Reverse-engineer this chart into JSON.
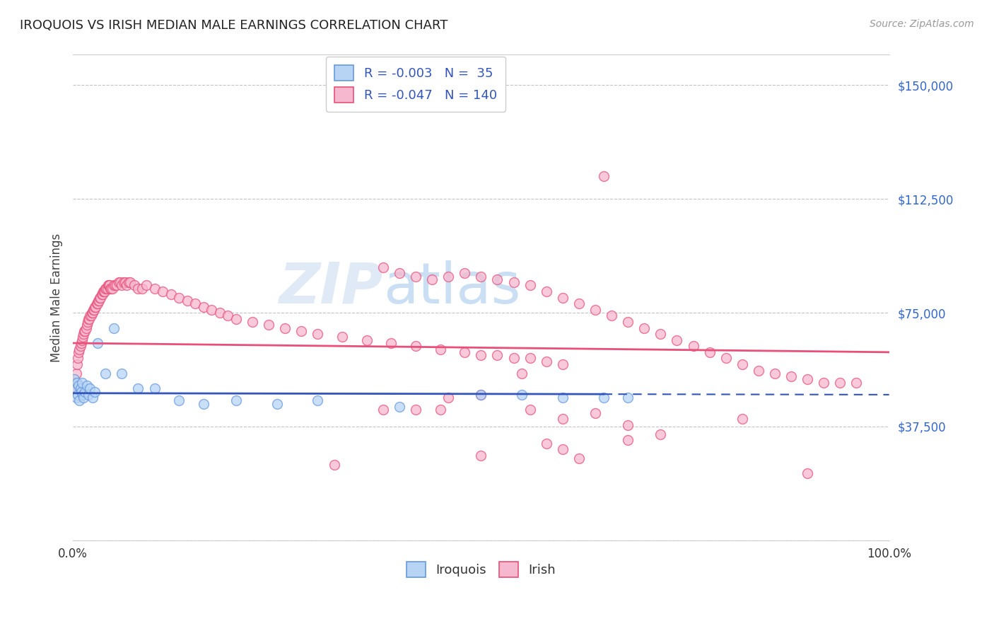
{
  "title": "IROQUOIS VS IRISH MEDIAN MALE EARNINGS CORRELATION CHART",
  "source": "Source: ZipAtlas.com",
  "ylabel": "Median Male Earnings",
  "xlabel": "",
  "xlim": [
    0.0,
    1.0
  ],
  "ylim": [
    0,
    160000
  ],
  "yticks": [
    0,
    37500,
    75000,
    112500,
    150000
  ],
  "ytick_labels": [
    "",
    "$37,500",
    "$75,000",
    "$112,500",
    "$150,000"
  ],
  "xticks": [
    0.0,
    0.25,
    0.5,
    0.75,
    1.0
  ],
  "xtick_labels": [
    "0.0%",
    "",
    "",
    "",
    "100.0%"
  ],
  "iroquois_color": "#b8d4f5",
  "irish_color": "#f5b8ce",
  "iroquois_edge_color": "#6699dd",
  "irish_edge_color": "#e8507a",
  "iroquois_line_color": "#3355bb",
  "irish_line_color": "#e8507a",
  "legend_iroquois_label": "R = -0.003   N =  35",
  "legend_irish_label": "R = -0.047   N = 140",
  "legend_bottom_iroquois": "Iroquois",
  "legend_bottom_irish": "Irish",
  "watermark": "ZIPatlas",
  "background_color": "#ffffff",
  "iroquois_x": [
    0.002,
    0.003,
    0.004,
    0.005,
    0.006,
    0.007,
    0.008,
    0.009,
    0.01,
    0.011,
    0.012,
    0.013,
    0.015,
    0.017,
    0.019,
    0.021,
    0.024,
    0.027,
    0.03,
    0.04,
    0.05,
    0.06,
    0.08,
    0.1,
    0.13,
    0.16,
    0.2,
    0.25,
    0.3,
    0.4,
    0.5,
    0.55,
    0.6,
    0.65,
    0.68
  ],
  "iroquois_y": [
    53000,
    50000,
    47000,
    52000,
    48000,
    51000,
    46000,
    50000,
    49000,
    52000,
    48000,
    47000,
    49000,
    51000,
    48000,
    50000,
    47000,
    49000,
    65000,
    55000,
    70000,
    55000,
    50000,
    50000,
    46000,
    45000,
    46000,
    45000,
    46000,
    44000,
    48000,
    48000,
    47000,
    47000,
    47000
  ],
  "irish_x": [
    0.002,
    0.003,
    0.004,
    0.005,
    0.006,
    0.007,
    0.008,
    0.009,
    0.01,
    0.011,
    0.012,
    0.013,
    0.014,
    0.015,
    0.016,
    0.017,
    0.018,
    0.019,
    0.02,
    0.021,
    0.022,
    0.023,
    0.024,
    0.025,
    0.026,
    0.027,
    0.028,
    0.029,
    0.03,
    0.031,
    0.032,
    0.033,
    0.034,
    0.035,
    0.036,
    0.037,
    0.038,
    0.039,
    0.04,
    0.041,
    0.042,
    0.043,
    0.044,
    0.045,
    0.046,
    0.047,
    0.048,
    0.05,
    0.052,
    0.054,
    0.056,
    0.058,
    0.06,
    0.062,
    0.064,
    0.066,
    0.068,
    0.07,
    0.075,
    0.08,
    0.085,
    0.09,
    0.1,
    0.11,
    0.12,
    0.13,
    0.14,
    0.15,
    0.16,
    0.17,
    0.18,
    0.19,
    0.2,
    0.22,
    0.24,
    0.26,
    0.28,
    0.3,
    0.33,
    0.36,
    0.39,
    0.42,
    0.45,
    0.48,
    0.5,
    0.52,
    0.54,
    0.56,
    0.58,
    0.6,
    0.38,
    0.4,
    0.42,
    0.44,
    0.46,
    0.48,
    0.5,
    0.52,
    0.54,
    0.56,
    0.58,
    0.6,
    0.62,
    0.64,
    0.66,
    0.68,
    0.7,
    0.72,
    0.74,
    0.76,
    0.78,
    0.8,
    0.82,
    0.84,
    0.86,
    0.88,
    0.9,
    0.92,
    0.94,
    0.96,
    0.32,
    0.65,
    0.55,
    0.6,
    0.45,
    0.5,
    0.58,
    0.62,
    0.68,
    0.72,
    0.38,
    0.42,
    0.46,
    0.5,
    0.56,
    0.6,
    0.64,
    0.68,
    0.82,
    0.9
  ],
  "irish_y": [
    50000,
    52000,
    55000,
    58000,
    60000,
    62000,
    63000,
    64000,
    65000,
    66000,
    67000,
    68000,
    69000,
    69000,
    70000,
    71000,
    72000,
    73000,
    73000,
    74000,
    74000,
    75000,
    75000,
    76000,
    76000,
    77000,
    77000,
    78000,
    78000,
    79000,
    79000,
    80000,
    80000,
    81000,
    81000,
    82000,
    82000,
    82000,
    83000,
    83000,
    83000,
    84000,
    84000,
    84000,
    83000,
    83000,
    83000,
    84000,
    84000,
    84000,
    85000,
    85000,
    84000,
    85000,
    85000,
    84000,
    85000,
    85000,
    84000,
    83000,
    83000,
    84000,
    83000,
    82000,
    81000,
    80000,
    79000,
    78000,
    77000,
    76000,
    75000,
    74000,
    73000,
    72000,
    71000,
    70000,
    69000,
    68000,
    67000,
    66000,
    65000,
    64000,
    63000,
    62000,
    61000,
    61000,
    60000,
    60000,
    59000,
    58000,
    90000,
    88000,
    87000,
    86000,
    87000,
    88000,
    87000,
    86000,
    85000,
    84000,
    82000,
    80000,
    78000,
    76000,
    74000,
    72000,
    70000,
    68000,
    66000,
    64000,
    62000,
    60000,
    58000,
    56000,
    55000,
    54000,
    53000,
    52000,
    52000,
    52000,
    25000,
    120000,
    55000,
    30000,
    43000,
    28000,
    32000,
    27000,
    33000,
    35000,
    43000,
    43000,
    47000,
    48000,
    43000,
    40000,
    42000,
    38000,
    40000,
    22000
  ]
}
